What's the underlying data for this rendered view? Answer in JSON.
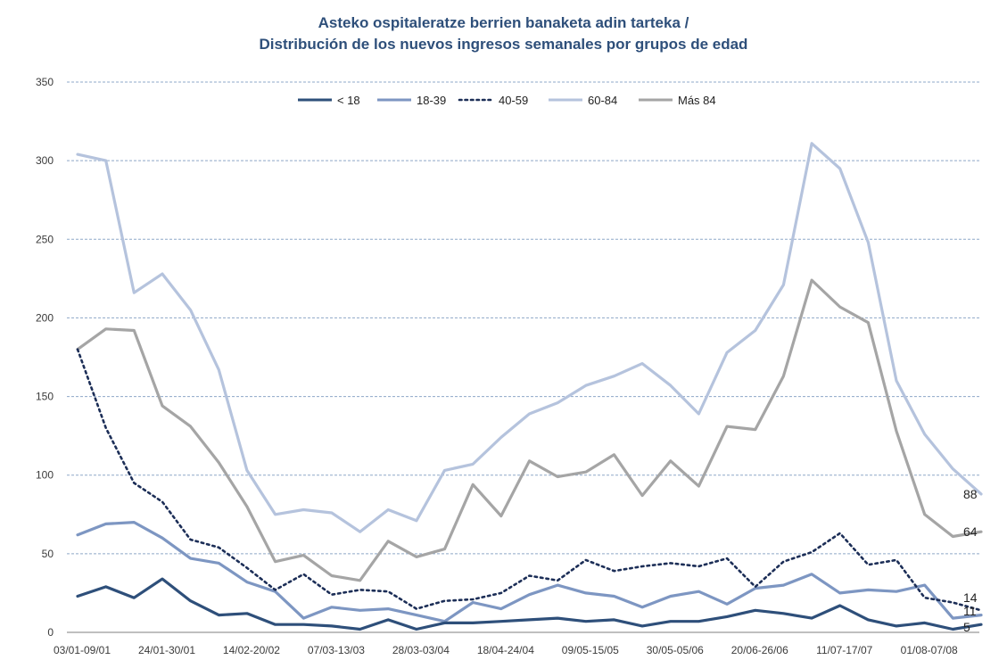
{
  "chart_data": {
    "type": "line",
    "title_line1": "Asteko ospitaleratze berrien banaketa adin tarteka /",
    "title_line2": "Distribución de los nuevos ingresos semanales por grupos de edad",
    "ylim": [
      0,
      350
    ],
    "yticks": [
      0,
      50,
      100,
      150,
      200,
      250,
      300,
      350
    ],
    "grid": "horizontal dashed",
    "legend_position": "top-center",
    "x_tick_labels": [
      {
        "index": 0,
        "label": "03/01-09/01"
      },
      {
        "index": 3,
        "label": "24/01-30/01"
      },
      {
        "index": 6,
        "label": "14/02-20/02"
      },
      {
        "index": 9,
        "label": "07/03-13/03"
      },
      {
        "index": 12,
        "label": "28/03-03/04"
      },
      {
        "index": 15,
        "label": "18/04-24/04"
      },
      {
        "index": 18,
        "label": "09/05-15/05"
      },
      {
        "index": 21,
        "label": "30/05-05/06"
      },
      {
        "index": 24,
        "label": "20/06-26/06"
      },
      {
        "index": 27,
        "label": "11/07-17/07"
      },
      {
        "index": 30,
        "label": "01/08-07/08"
      }
    ],
    "n_points": 33,
    "series": [
      {
        "name": "< 18",
        "color": "#2e4f7a",
        "dash": "solid",
        "values": [
          23,
          29,
          22,
          34,
          20,
          11,
          12,
          5,
          5,
          4,
          2,
          8,
          2,
          6,
          6,
          7,
          8,
          9,
          7,
          8,
          4,
          7,
          7,
          10,
          14,
          12,
          9,
          17,
          8,
          4,
          6,
          2,
          5
        ],
        "end_label": "5"
      },
      {
        "name": "18-39",
        "color": "#7d96c2",
        "dash": "solid",
        "values": [
          62,
          69,
          70,
          60,
          47,
          44,
          32,
          26,
          9,
          16,
          14,
          15,
          11,
          7,
          19,
          15,
          24,
          30,
          25,
          23,
          16,
          23,
          26,
          18,
          28,
          30,
          37,
          25,
          27,
          26,
          30,
          9,
          11
        ],
        "end_label": "11"
      },
      {
        "name": "40-59",
        "color": "#1c2e57",
        "dash": "dotted",
        "values": [
          180,
          130,
          95,
          83,
          59,
          54,
          41,
          27,
          37,
          24,
          27,
          26,
          15,
          20,
          21,
          25,
          36,
          33,
          46,
          39,
          42,
          44,
          42,
          47,
          29,
          45,
          51,
          63,
          43,
          46,
          22,
          19,
          14
        ],
        "end_label": "14"
      },
      {
        "name": "60-84",
        "color": "#b5c3dd",
        "dash": "solid",
        "values": [
          304,
          300,
          216,
          228,
          205,
          167,
          103,
          75,
          78,
          76,
          64,
          78,
          71,
          103,
          107,
          124,
          139,
          146,
          157,
          163,
          171,
          157,
          139,
          178,
          192,
          221,
          311,
          295,
          248,
          160,
          126,
          104,
          88
        ],
        "end_label": "88"
      },
      {
        "name": "Más 84",
        "color": "#a5a5a5",
        "dash": "solid",
        "values": [
          180,
          193,
          192,
          144,
          131,
          108,
          80,
          45,
          49,
          36,
          33,
          58,
          48,
          53,
          94,
          74,
          109,
          99,
          102,
          113,
          87,
          109,
          93,
          131,
          129,
          163,
          224,
          207,
          197,
          128,
          75,
          61,
          64
        ],
        "end_label": "64"
      }
    ]
  }
}
